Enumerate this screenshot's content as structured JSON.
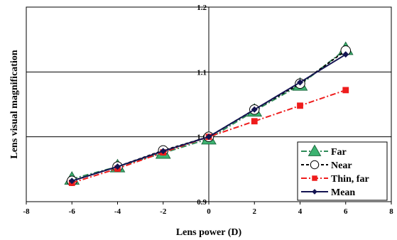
{
  "chart_data": {
    "type": "line",
    "xlabel": "Lens power (D)",
    "ylabel": "Lens visual magnification",
    "xlim": [
      -8,
      8
    ],
    "ylim": [
      0.9,
      1.2
    ],
    "x_ticks": [
      -8,
      -6,
      -4,
      -2,
      0,
      2,
      4,
      6,
      8
    ],
    "y_ticks": [
      0.9,
      1.0,
      1.1,
      1.2
    ],
    "x_tick_labels": [
      "-8",
      "-6",
      "-4",
      "-2",
      "0",
      "2",
      "4",
      "6",
      "8"
    ],
    "y_tick_labels": [
      "0.9",
      "1.0",
      "1.1",
      "1.2"
    ],
    "grid": "major gridlines on both axes",
    "legend_position": "bottom-right",
    "series": [
      {
        "name": "Far",
        "marker": "triangle",
        "line_style": "dash-dot",
        "color": "#2e8b57",
        "x": [
          -6,
          -4,
          -2,
          0,
          2,
          4,
          6
        ],
        "y": [
          0.935,
          0.954,
          0.975,
          0.997,
          1.04,
          1.08,
          1.135
        ]
      },
      {
        "name": "Near",
        "marker": "open-circle",
        "line_style": "dashed",
        "color": "#000000",
        "x": [
          -6,
          -4,
          -2,
          0,
          2,
          4,
          6
        ],
        "y": [
          0.932,
          0.954,
          0.979,
          1.0,
          1.042,
          1.082,
          1.133
        ]
      },
      {
        "name": "Thin, far",
        "marker": "square",
        "line_style": "dash-dot",
        "color": "#ee1c1c",
        "x": [
          -6,
          -4,
          -2,
          0,
          2,
          4,
          6
        ],
        "y": [
          0.929,
          0.951,
          0.976,
          1.0,
          1.024,
          1.048,
          1.072
        ]
      },
      {
        "name": "Mean",
        "marker": "diamond",
        "line_style": "solid",
        "color": "#141452",
        "x": [
          -6,
          -4,
          -2,
          0,
          2,
          4,
          6
        ],
        "y": [
          0.932,
          0.954,
          0.978,
          1.0,
          1.042,
          1.084,
          1.127
        ]
      }
    ]
  }
}
